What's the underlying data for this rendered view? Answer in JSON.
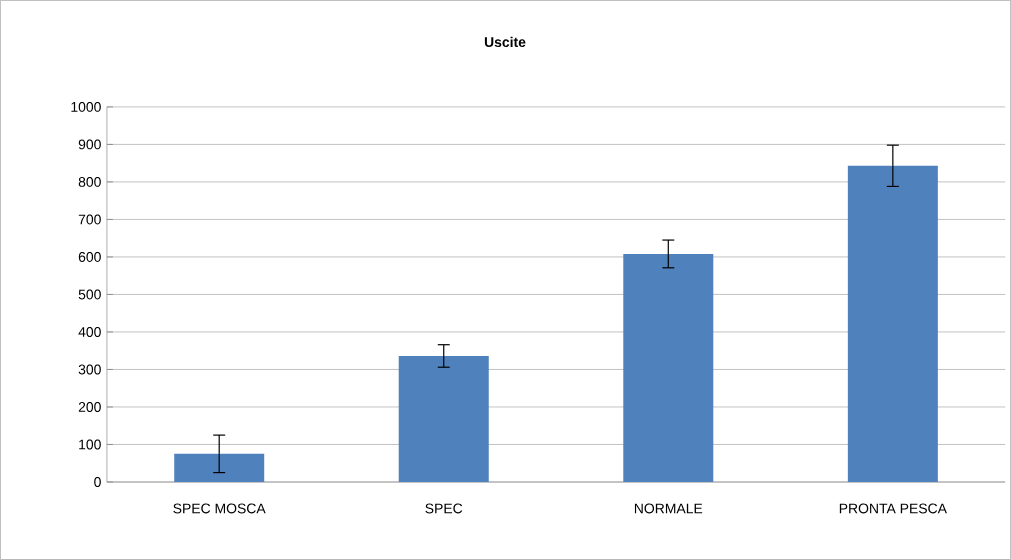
{
  "chart_data": {
    "type": "bar",
    "title": "Uscite",
    "categories": [
      "SPEC MOSCA",
      "SPEC",
      "NORMALE",
      "PRONTA PESCA"
    ],
    "values": [
      75,
      336,
      608,
      843
    ],
    "errors": [
      50,
      30,
      37,
      55
    ],
    "color": "#4f81bd",
    "ylim": [
      0,
      1000
    ],
    "yticks": [
      0,
      100,
      200,
      300,
      400,
      500,
      600,
      700,
      800,
      900,
      1000
    ],
    "grid": "y"
  }
}
